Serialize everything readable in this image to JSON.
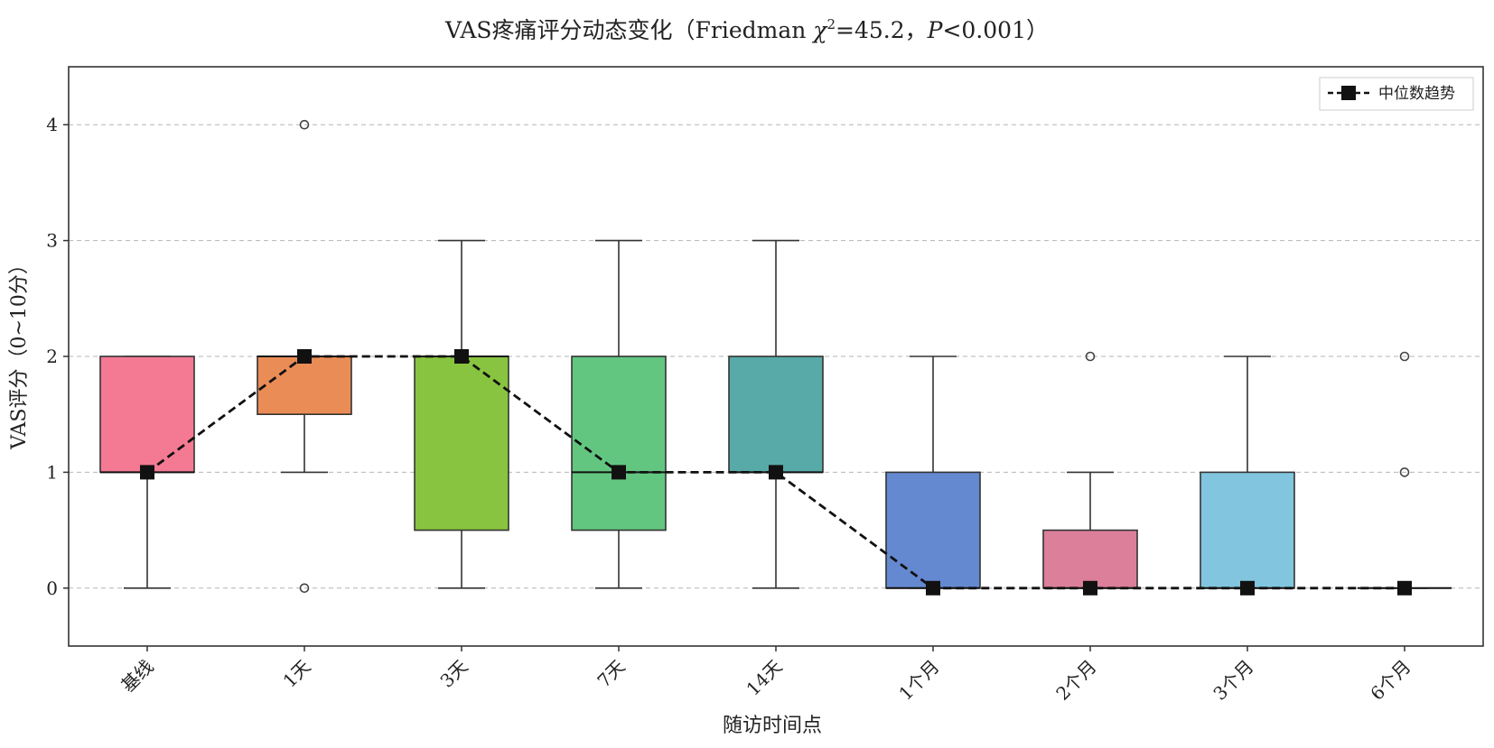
{
  "chart_data": {
    "type": "box",
    "title": {
      "main": "VAS疼痛评分动态变化（Friedman ",
      "chi": "χ",
      "chi_sup": "2",
      "stat": "=45.2，",
      "p": "P",
      "p_rest": "<0.001）"
    },
    "xlabel": "随访时间点",
    "ylabel": "VAS评分（0~10分）",
    "ylim": [
      -0.5,
      4.5
    ],
    "yticks": [
      0,
      1,
      2,
      3,
      4
    ],
    "ytick_labels": [
      "0",
      "1",
      "2",
      "3",
      "4"
    ],
    "grid": "horizontal dashed",
    "legend": {
      "position": "top-right",
      "label": "中位数趋势"
    },
    "categories": [
      "基线",
      "1天",
      "3天",
      "7天",
      "14天",
      "1个月",
      "2个月",
      "3个月",
      "6个月"
    ],
    "boxes": [
      {
        "q1": 1,
        "median": 1,
        "q3": 2,
        "whisker_low": 0,
        "whisker_high": 2,
        "outliers": [],
        "color": "#f47a93"
      },
      {
        "q1": 1.5,
        "median": 2,
        "q3": 2,
        "whisker_low": 1,
        "whisker_high": 2,
        "outliers": [
          0,
          4
        ],
        "color": "#ea8c56"
      },
      {
        "q1": 0.5,
        "median": 2,
        "q3": 2,
        "whisker_low": 0,
        "whisker_high": 3,
        "outliers": [],
        "color": "#88c43f"
      },
      {
        "q1": 0.5,
        "median": 1,
        "q3": 2,
        "whisker_low": 0,
        "whisker_high": 3,
        "outliers": [],
        "color": "#63c680"
      },
      {
        "q1": 1,
        "median": 1,
        "q3": 2,
        "whisker_low": 0,
        "whisker_high": 3,
        "outliers": [],
        "color": "#58aaa8"
      },
      {
        "q1": 0,
        "median": 0,
        "q3": 1,
        "whisker_low": 0,
        "whisker_high": 2,
        "outliers": [],
        "color": "#6489d0"
      },
      {
        "q1": 0,
        "median": 0,
        "q3": 0.5,
        "whisker_low": 0,
        "whisker_high": 1,
        "outliers": [
          2
        ],
        "color": "#db7f9a"
      },
      {
        "q1": 0,
        "median": 0,
        "q3": 1,
        "whisker_low": 0,
        "whisker_high": 2,
        "outliers": [],
        "color": "#82c5df"
      },
      {
        "q1": 0,
        "median": 0,
        "q3": 0,
        "whisker_low": 0,
        "whisker_high": 0,
        "outliers": [
          1,
          2
        ],
        "color": "#82c5df"
      }
    ],
    "median_trend": [
      1,
      2,
      2,
      1,
      1,
      0,
      0,
      0,
      0
    ],
    "colors": {
      "median_line": "#111111",
      "box_edge": "#333333",
      "grid": "#b5b5b5"
    }
  }
}
